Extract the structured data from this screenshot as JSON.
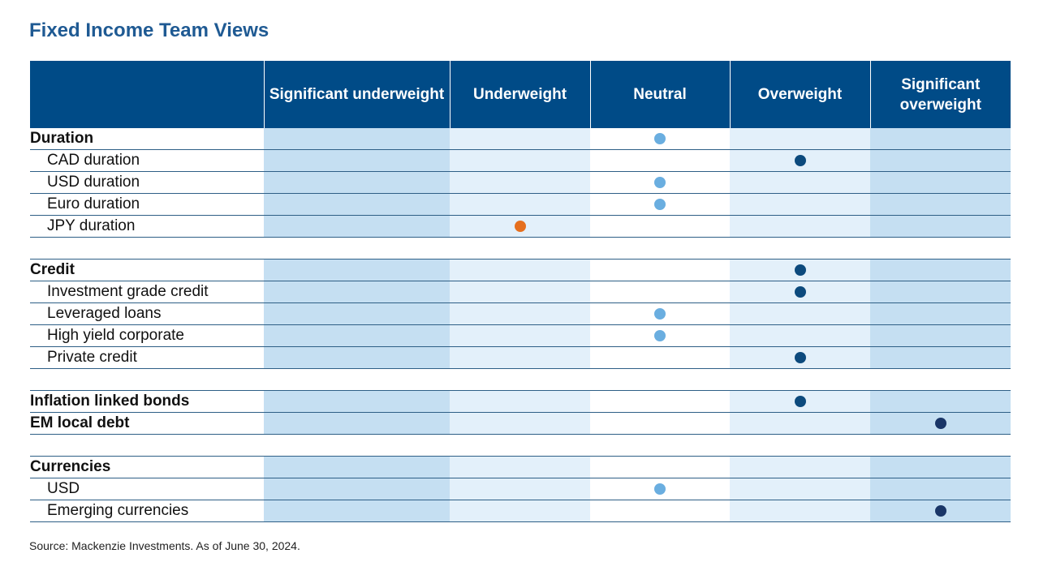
{
  "title": "Fixed Income Team Views",
  "source": "Source: Mackenzie Investments. As of June 30, 2024.",
  "colors": {
    "light_blue": "#6aaee0",
    "dark_blue": "#0c4a7d",
    "navy": "#1a3668",
    "orange": "#e56f1e",
    "header": "#004b87"
  },
  "chart_data": {
    "type": "table",
    "columns": [
      "",
      "Significant underweight",
      "Underweight",
      "Neutral",
      "Overweight",
      "Significant overweight"
    ],
    "rows": [
      {
        "kind": "row",
        "label": "Duration",
        "style": "bold",
        "position": 3,
        "color": "light_blue"
      },
      {
        "kind": "row",
        "label": "CAD duration",
        "style": "sub",
        "position": 4,
        "color": "dark_blue"
      },
      {
        "kind": "row",
        "label": "USD duration",
        "style": "sub",
        "position": 3,
        "color": "light_blue"
      },
      {
        "kind": "row",
        "label": "Euro duration",
        "style": "sub",
        "position": 3,
        "color": "light_blue"
      },
      {
        "kind": "row",
        "label": "JPY duration",
        "style": "sub",
        "position": 2,
        "color": "orange"
      },
      {
        "kind": "spacer"
      },
      {
        "kind": "row",
        "label": "Credit",
        "style": "bold",
        "position": 4,
        "color": "dark_blue"
      },
      {
        "kind": "row",
        "label": "Investment grade credit",
        "style": "sub",
        "position": 4,
        "color": "dark_blue"
      },
      {
        "kind": "row",
        "label": "Leveraged loans",
        "style": "sub",
        "position": 3,
        "color": "light_blue"
      },
      {
        "kind": "row",
        "label": "High yield corporate",
        "style": "sub",
        "position": 3,
        "color": "light_blue"
      },
      {
        "kind": "row",
        "label": "Private credit",
        "style": "sub",
        "position": 4,
        "color": "dark_blue"
      },
      {
        "kind": "spacer"
      },
      {
        "kind": "row",
        "label": "Inflation linked bonds",
        "style": "bold",
        "position": 4,
        "color": "dark_blue"
      },
      {
        "kind": "row",
        "label": "EM local debt",
        "style": "bold",
        "position": 5,
        "color": "navy"
      },
      {
        "kind": "spacer"
      },
      {
        "kind": "row",
        "label": "Currencies",
        "style": "bold",
        "position": null,
        "color": null
      },
      {
        "kind": "row",
        "label": "USD",
        "style": "sub",
        "position": 3,
        "color": "light_blue"
      },
      {
        "kind": "row",
        "label": "Emerging currencies",
        "style": "sub",
        "position": 5,
        "color": "navy"
      }
    ]
  }
}
